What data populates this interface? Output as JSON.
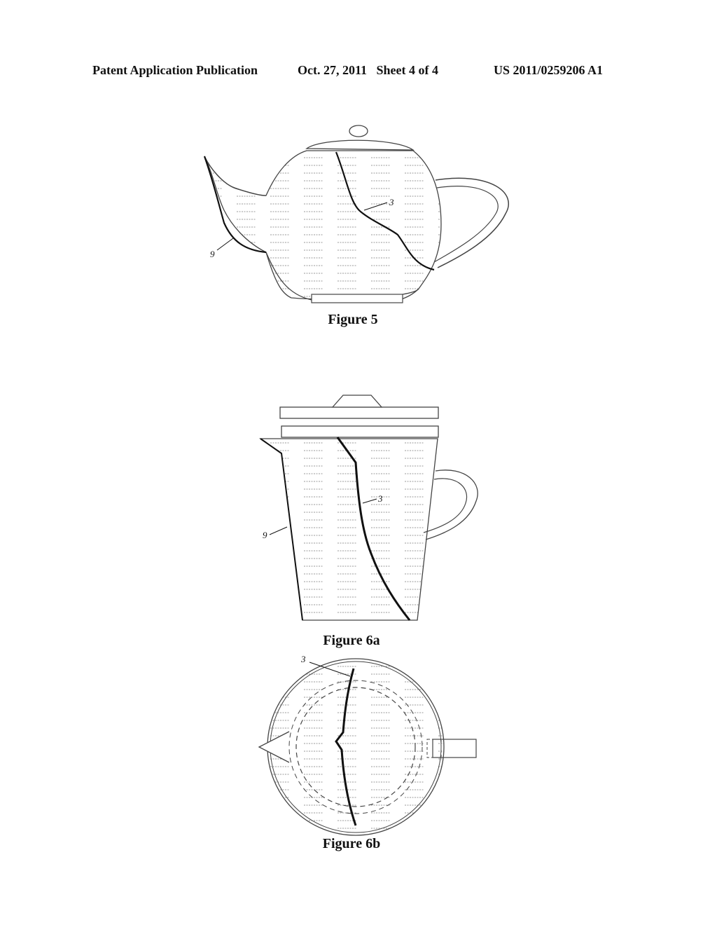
{
  "header": {
    "publication": "Patent Application Publication",
    "date_sheet": "Oct. 27, 2011   Sheet 4 of 4",
    "number": "US 2011/0259206 A1"
  },
  "figures": [
    {
      "caption": "Figure 5",
      "refs": [
        "3",
        "9"
      ]
    },
    {
      "caption": "Figure 6a",
      "refs": [
        "3",
        "9"
      ]
    },
    {
      "caption": "Figure 6b",
      "refs": [
        "3"
      ]
    }
  ]
}
